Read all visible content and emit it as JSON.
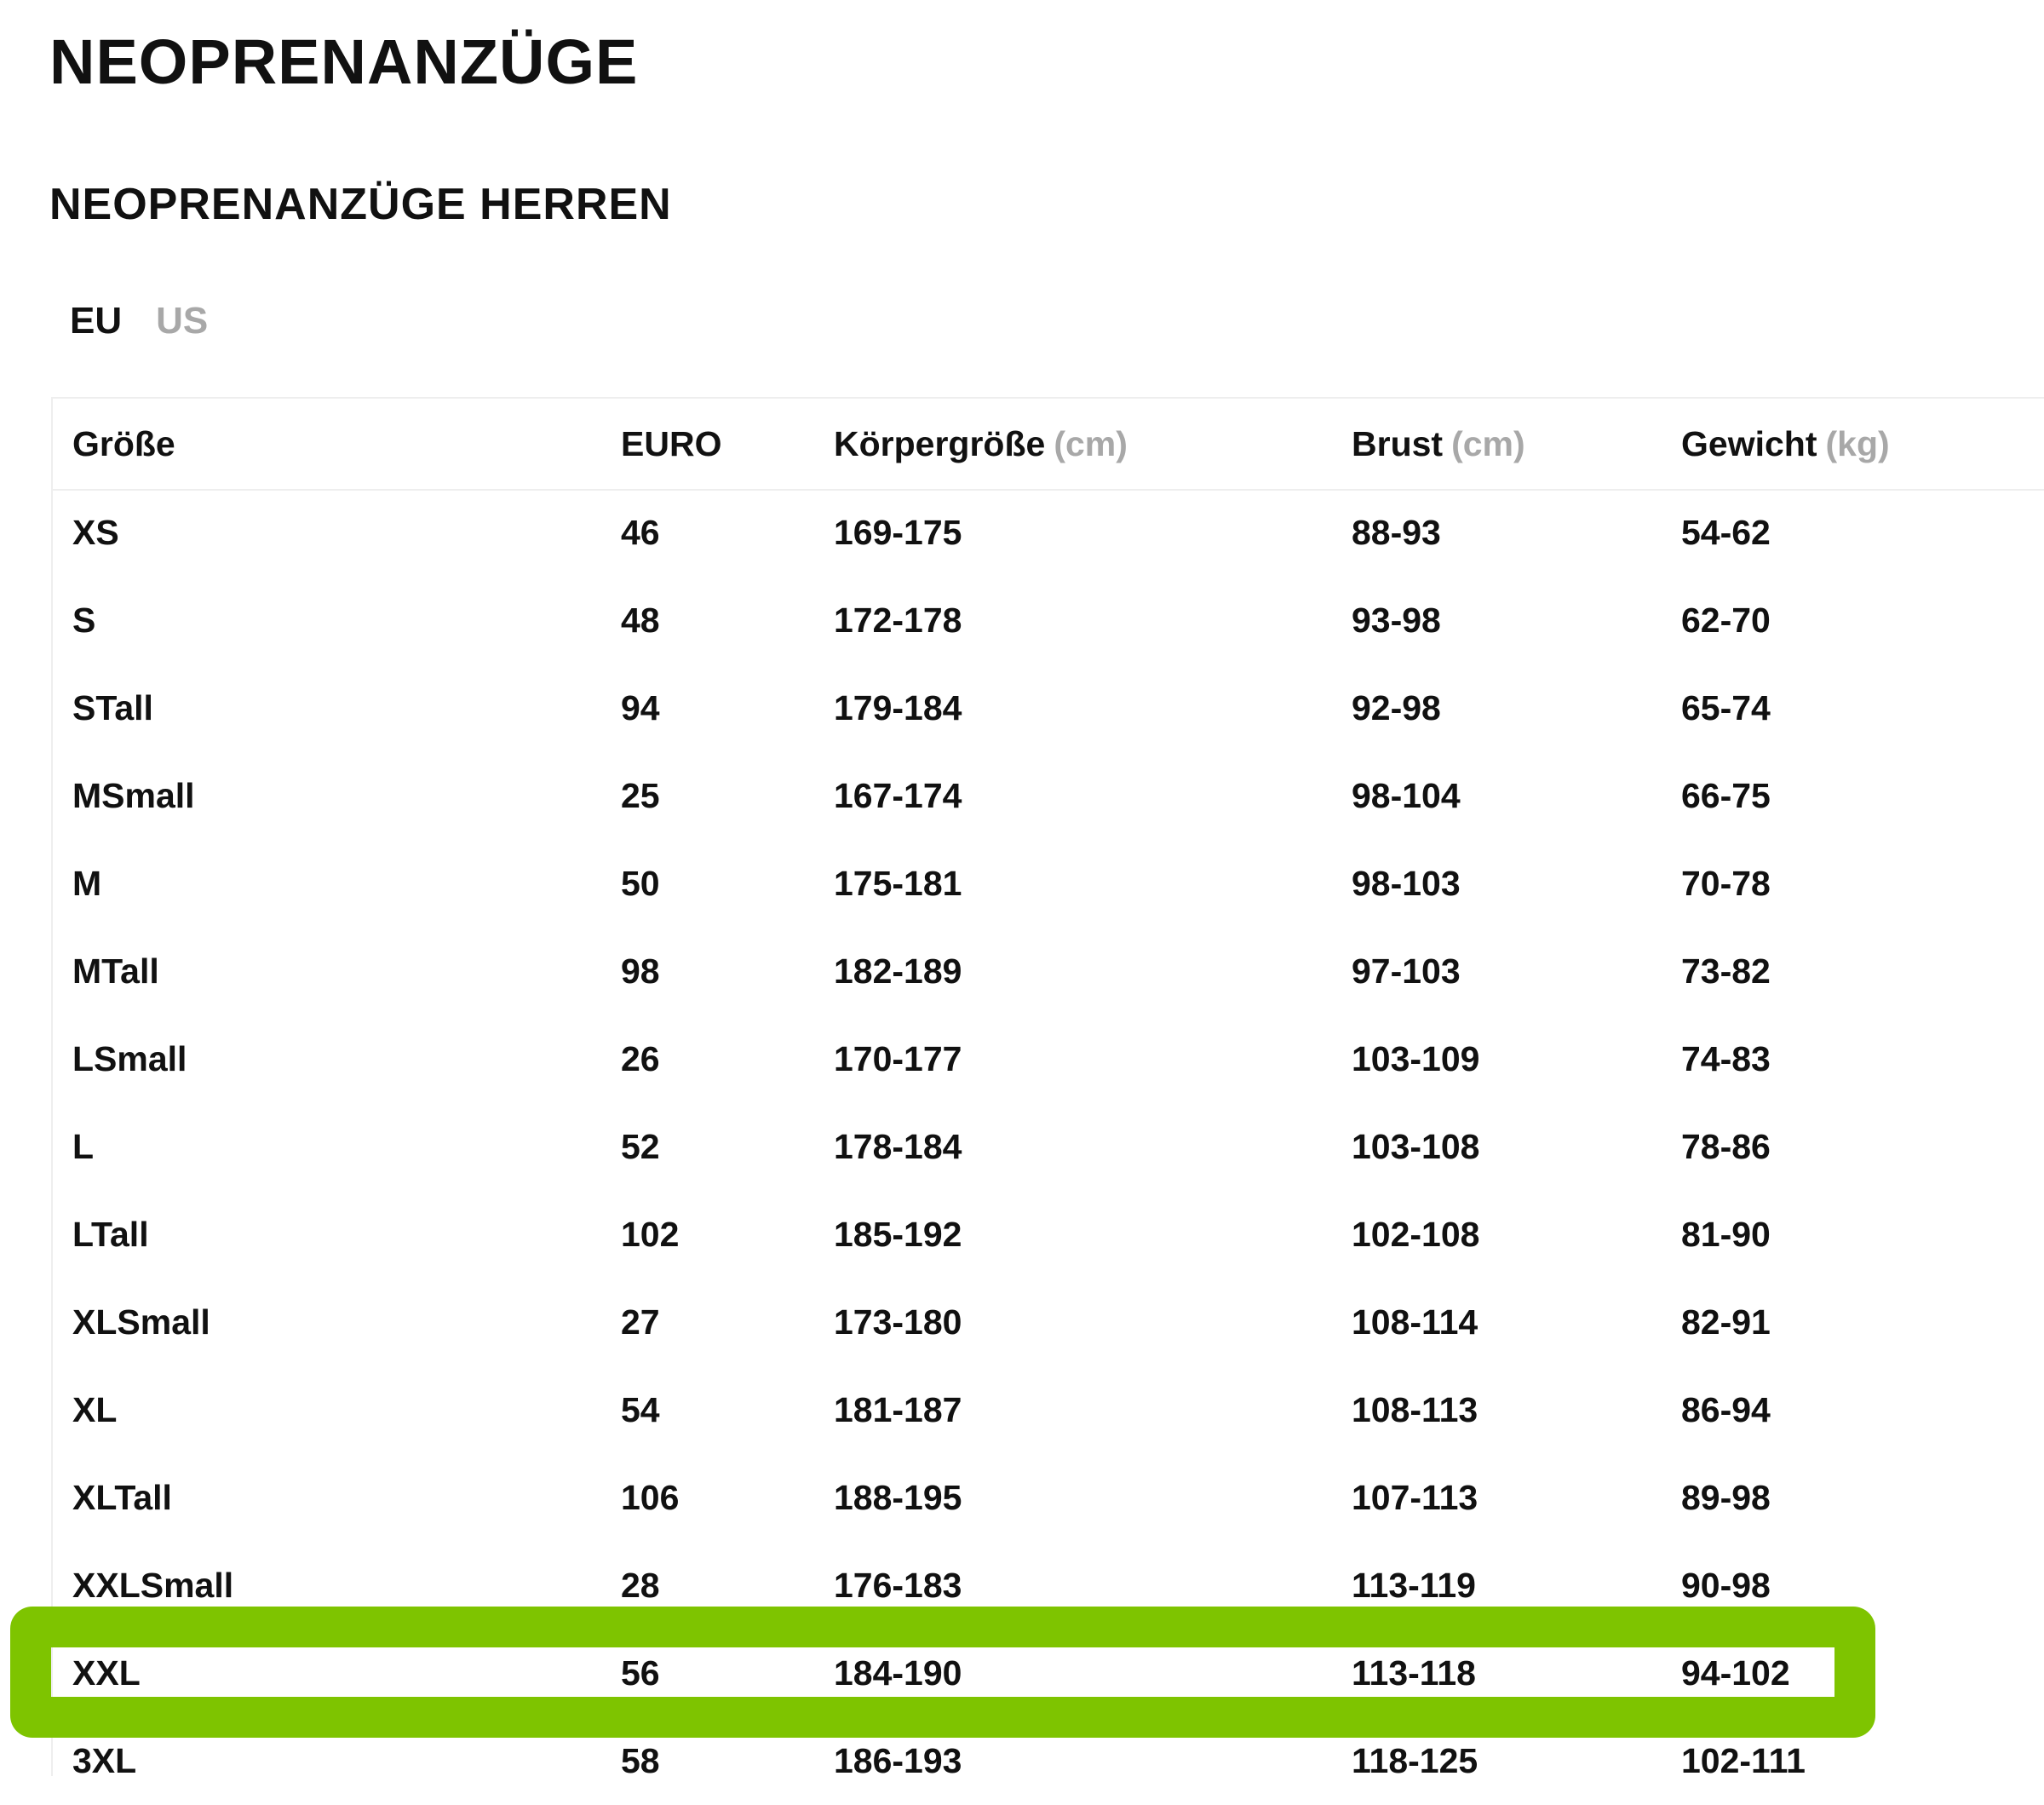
{
  "page": {
    "title": "NEOPRENANZÜGE",
    "section_title": "NEOPRENANZÜGE HERREN"
  },
  "unit_tabs": [
    {
      "label": "EU",
      "active": true
    },
    {
      "label": "US",
      "active": false
    }
  ],
  "table": {
    "headers": [
      {
        "label": "Größe",
        "unit": ""
      },
      {
        "label": "EURO",
        "unit": ""
      },
      {
        "label": "Körpergröße",
        "unit": "(cm)"
      },
      {
        "label": "Brust",
        "unit": "(cm)"
      },
      {
        "label": "Gewicht",
        "unit": "(kg)"
      }
    ],
    "rows": [
      [
        "XS",
        "46",
        "169-175",
        "88-93",
        "54-62"
      ],
      [
        "S",
        "48",
        "172-178",
        "93-98",
        "62-70"
      ],
      [
        "STall",
        "94",
        "179-184",
        "92-98",
        "65-74"
      ],
      [
        "MSmall",
        "25",
        "167-174",
        "98-104",
        "66-75"
      ],
      [
        "M",
        "50",
        "175-181",
        "98-103",
        "70-78"
      ],
      [
        "MTall",
        "98",
        "182-189",
        "97-103",
        "73-82"
      ],
      [
        "LSmall",
        "26",
        "170-177",
        "103-109",
        "74-83"
      ],
      [
        "L",
        "52",
        "178-184",
        "103-108",
        "78-86"
      ],
      [
        "LTall",
        "102",
        "185-192",
        "102-108",
        "81-90"
      ],
      [
        "XLSmall",
        "27",
        "173-180",
        "108-114",
        "82-91"
      ],
      [
        "XL",
        "54",
        "181-187",
        "108-113",
        "86-94"
      ],
      [
        "XLTall",
        "106",
        "188-195",
        "107-113",
        "89-98"
      ],
      [
        "XXLSmall",
        "28",
        "176-183",
        "113-119",
        "90-98"
      ],
      [
        "XXL",
        "56",
        "184-190",
        "113-118",
        "94-102"
      ],
      [
        "3XL",
        "58",
        "186-193",
        "118-125",
        "102-111"
      ]
    ],
    "highlighted_row": "XXL"
  },
  "colors": {
    "highlight": "#7ec400",
    "muted_text": "#a8a8a8",
    "text": "#111111"
  }
}
